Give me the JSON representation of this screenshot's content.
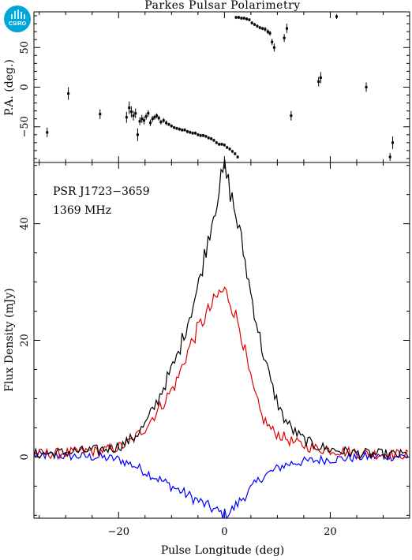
{
  "title": "Parkes Pulsar Polarimetry",
  "logo": {
    "text": "CSIRO",
    "color": "#00a6d6"
  },
  "annotation": {
    "source": "PSR J1723−3659",
    "frequency": "1369 MHz"
  },
  "colors": {
    "total": "#000000",
    "linear": "#e00000",
    "circular": "#0000ff"
  },
  "chart_data": [
    {
      "type": "scatter",
      "panel": "top",
      "ylabel": "P.A. (deg.)",
      "xlim": [
        -36,
        35
      ],
      "ylim": [
        -95,
        95
      ],
      "yticks": [
        -50,
        0,
        50
      ],
      "ytick_labels": [
        "−50",
        "0",
        "50"
      ],
      "points": [
        {
          "x": -33.5,
          "y": -57,
          "err": 6
        },
        {
          "x": -29.5,
          "y": -8,
          "err": 8
        },
        {
          "x": -23.5,
          "y": -34,
          "err": 6
        },
        {
          "x": -18.5,
          "y": -38,
          "err": 7
        },
        {
          "x": -18.0,
          "y": -26,
          "err": 8
        },
        {
          "x": -17.6,
          "y": -31,
          "err": 7
        },
        {
          "x": -17.2,
          "y": -36,
          "err": 6
        },
        {
          "x": -16.8,
          "y": -33,
          "err": 6
        },
        {
          "x": -16.4,
          "y": -60,
          "err": 8
        },
        {
          "x": -16.0,
          "y": -43,
          "err": 5
        },
        {
          "x": -15.6,
          "y": -40,
          "err": 5
        },
        {
          "x": -15.2,
          "y": -42,
          "err": 5
        },
        {
          "x": -14.8,
          "y": -37,
          "err": 4
        },
        {
          "x": -14.4,
          "y": -33,
          "err": 4
        },
        {
          "x": -14.0,
          "y": -45,
          "err": 4
        },
        {
          "x": -13.6,
          "y": -40,
          "err": 4
        },
        {
          "x": -13.2,
          "y": -38,
          "err": 3
        },
        {
          "x": -12.8,
          "y": -36,
          "err": 3
        },
        {
          "x": -12.4,
          "y": -39,
          "err": 3
        },
        {
          "x": -12.0,
          "y": -44,
          "err": 3
        },
        {
          "x": -11.5,
          "y": -42,
          "err": 3
        },
        {
          "x": -11.0,
          "y": -45,
          "err": 3
        },
        {
          "x": -10.5,
          "y": -47,
          "err": 2
        },
        {
          "x": -10.0,
          "y": -49,
          "err": 2
        },
        {
          "x": -9.5,
          "y": -51,
          "err": 2
        },
        {
          "x": -9.0,
          "y": -52,
          "err": 2
        },
        {
          "x": -8.5,
          "y": -53,
          "err": 2
        },
        {
          "x": -8.0,
          "y": -54,
          "err": 2
        },
        {
          "x": -7.5,
          "y": -54,
          "err": 2
        },
        {
          "x": -7.0,
          "y": -56,
          "err": 2
        },
        {
          "x": -6.5,
          "y": -57,
          "err": 2
        },
        {
          "x": -6.0,
          "y": -58,
          "err": 2
        },
        {
          "x": -5.5,
          "y": -58,
          "err": 2
        },
        {
          "x": -5.0,
          "y": -60,
          "err": 2
        },
        {
          "x": -4.5,
          "y": -61,
          "err": 2
        },
        {
          "x": -4.0,
          "y": -61,
          "err": 2
        },
        {
          "x": -3.5,
          "y": -62,
          "err": 2
        },
        {
          "x": -3.0,
          "y": -64,
          "err": 2
        },
        {
          "x": -2.5,
          "y": -65,
          "err": 2
        },
        {
          "x": -2.0,
          "y": -67,
          "err": 2
        },
        {
          "x": -1.5,
          "y": -70,
          "err": 2
        },
        {
          "x": -1.0,
          "y": -72,
          "err": 2
        },
        {
          "x": -0.5,
          "y": -72,
          "err": 2
        },
        {
          "x": 0.0,
          "y": -73,
          "err": 2
        },
        {
          "x": 0.5,
          "y": -76,
          "err": 2
        },
        {
          "x": 1.0,
          "y": -78,
          "err": 2
        },
        {
          "x": 1.5,
          "y": -81,
          "err": 2
        },
        {
          "x": 2.0,
          "y": -84,
          "err": 2
        },
        {
          "x": 2.5,
          "y": -88,
          "err": 2
        },
        {
          "x": 2.2,
          "y": 88,
          "err": 2
        },
        {
          "x": 2.7,
          "y": 88,
          "err": 2
        },
        {
          "x": 3.2,
          "y": 87,
          "err": 2
        },
        {
          "x": 3.7,
          "y": 87,
          "err": 2
        },
        {
          "x": 4.2,
          "y": 86,
          "err": 2
        },
        {
          "x": 4.7,
          "y": 85,
          "err": 2
        },
        {
          "x": 5.2,
          "y": 81,
          "err": 2
        },
        {
          "x": 5.7,
          "y": 79,
          "err": 2
        },
        {
          "x": 6.2,
          "y": 77,
          "err": 2
        },
        {
          "x": 6.7,
          "y": 75,
          "err": 2
        },
        {
          "x": 7.2,
          "y": 74,
          "err": 2
        },
        {
          "x": 7.7,
          "y": 73,
          "err": 3
        },
        {
          "x": 8.2,
          "y": 70,
          "err": 3
        },
        {
          "x": 8.6,
          "y": 68,
          "err": 3
        },
        {
          "x": 9.0,
          "y": 57,
          "err": 4
        },
        {
          "x": 9.4,
          "y": 50,
          "err": 5
        },
        {
          "x": 11.3,
          "y": 62,
          "err": 5
        },
        {
          "x": 11.8,
          "y": 74,
          "err": 6
        },
        {
          "x": 12.6,
          "y": -36,
          "err": 6
        },
        {
          "x": 17.8,
          "y": 7,
          "err": 6
        },
        {
          "x": 18.2,
          "y": 12,
          "err": 7
        },
        {
          "x": 21.2,
          "y": 89,
          "err": 3
        },
        {
          "x": 26.8,
          "y": 0,
          "err": 6
        },
        {
          "x": 31.3,
          "y": -88,
          "err": 5
        },
        {
          "x": 31.8,
          "y": -70,
          "err": 8
        }
      ]
    },
    {
      "type": "line",
      "panel": "bottom",
      "xlabel": "Pulse Longitude (deg)",
      "ylabel": "Flux Density (mJy)",
      "xlim": [
        -36,
        35
      ],
      "ylim": [
        -10.5,
        50.5
      ],
      "xticks": [
        -20,
        0,
        20
      ],
      "xtick_labels": [
        "−20",
        "0",
        "20"
      ],
      "yticks": [
        0,
        20,
        40
      ],
      "ytick_labels": [
        "0",
        "20",
        "40"
      ],
      "series": [
        {
          "key": "total",
          "x": [
            -36,
            -33,
            -30,
            -27,
            -24,
            -21,
            -19,
            -17,
            -15,
            -13,
            -11,
            -9,
            -7,
            -5,
            -3,
            -1,
            0,
            1,
            3,
            5,
            7,
            9,
            11,
            13,
            15,
            17,
            20,
            23,
            26,
            29,
            32,
            35
          ],
          "values": [
            0.5,
            0.6,
            0.8,
            1.0,
            1.2,
            1.6,
            2.2,
            3.5,
            5.5,
            9,
            13,
            17,
            23,
            29,
            38,
            46,
            49.5,
            46,
            38,
            28,
            19,
            12,
            7,
            4.5,
            3,
            2,
            1.3,
            0.9,
            0.6,
            0.5,
            0.4,
            0.4
          ]
        },
        {
          "key": "linear",
          "x": [
            -36,
            -33,
            -30,
            -27,
            -24,
            -21,
            -19,
            -17,
            -15,
            -13,
            -11,
            -9,
            -7,
            -5,
            -3,
            -1,
            0,
            1,
            3,
            5,
            7,
            9,
            11,
            13,
            15,
            17,
            20,
            23,
            26,
            29,
            32,
            35
          ],
          "values": [
            0.5,
            0.6,
            0.7,
            0.9,
            1.0,
            1.4,
            2.0,
            3.2,
            5.0,
            7.5,
            10,
            13,
            18,
            22,
            25,
            28,
            28.5,
            27,
            22,
            13,
            7,
            4.5,
            3.5,
            2.5,
            2,
            1.5,
            1.2,
            0.9,
            0.6,
            0.5,
            0.5,
            0.4
          ]
        },
        {
          "key": "circular",
          "x": [
            -36,
            -30,
            -24,
            -20,
            -17,
            -15,
            -13,
            -11,
            -9,
            -7,
            -5,
            -3,
            -1,
            0,
            1,
            3,
            5,
            7,
            9,
            11,
            13,
            15,
            18,
            22,
            26,
            30,
            35
          ],
          "values": [
            0.3,
            0.2,
            0,
            -0.4,
            -1.5,
            -2.5,
            -3.5,
            -4.5,
            -5.5,
            -6.5,
            -7.5,
            -8.5,
            -9.5,
            -9.8,
            -9.5,
            -7.5,
            -5.5,
            -3.5,
            -2.5,
            -1.5,
            -1,
            -0.8,
            -0.5,
            -0.3,
            0,
            0.1,
            0.1
          ]
        }
      ]
    }
  ]
}
